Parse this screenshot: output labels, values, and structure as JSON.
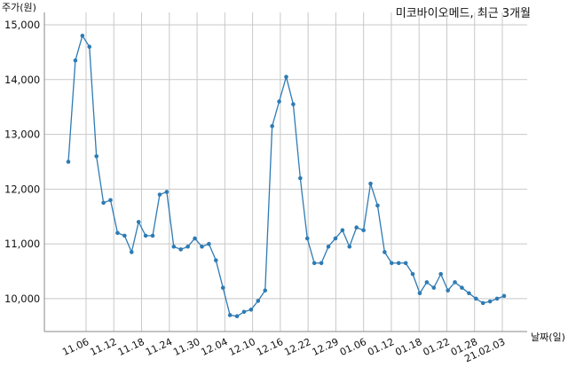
{
  "chart_data": {
    "type": "line",
    "title": "미코바이오메드, 최근 3개월",
    "ylabel": "주가(원)",
    "xlabel": "날짜(일)",
    "ylim": [
      9400,
      15000
    ],
    "yticks": [
      10000,
      11000,
      12000,
      13000,
      14000,
      15000
    ],
    "ytick_labels": [
      "10,000",
      "11,000",
      "12,000",
      "13,000",
      "14,000",
      "15,000"
    ],
    "xtick_labels": [
      "11.06",
      "11.12",
      "11.18",
      "11.24",
      "11.30",
      "12.04",
      "12.10",
      "12.16",
      "12.22",
      "12.29",
      "01.06",
      "01.12",
      "01.18",
      "01.22",
      "01.28",
      "21.02.03"
    ],
    "grid": true,
    "color": "#2e7bb4",
    "series": [
      {
        "x": [
          "11.04",
          "11.05",
          "11.06",
          "11.09",
          "11.10",
          "11.11",
          "11.12",
          "11.13",
          "11.16",
          "11.17",
          "11.18",
          "11.19",
          "11.20",
          "11.23",
          "11.24",
          "11.25",
          "11.26",
          "11.27",
          "11.30",
          "12.01",
          "12.02",
          "12.03",
          "12.04",
          "12.07",
          "12.08",
          "12.09",
          "12.10",
          "12.11",
          "12.14",
          "12.15",
          "12.16",
          "12.17",
          "12.18",
          "12.21",
          "12.22",
          "12.23",
          "12.24",
          "12.28",
          "12.29",
          "12.30",
          "01.04",
          "01.05",
          "01.06",
          "01.07",
          "01.08",
          "01.11",
          "01.12",
          "01.13",
          "01.14",
          "01.15",
          "01.18",
          "01.19",
          "01.20",
          "01.21",
          "01.22",
          "01.25",
          "01.26",
          "01.27",
          "01.28",
          "01.29",
          "02.01",
          "02.02",
          "02.03"
        ],
        "values": [
          12500,
          14350,
          14800,
          14600,
          12600,
          11750,
          11800,
          11200,
          11150,
          10850,
          11400,
          11150,
          11150,
          11900,
          11950,
          10950,
          10900,
          10950,
          11100,
          10950,
          11000,
          10700,
          10200,
          9700,
          9680,
          9760,
          9800,
          9960,
          10150,
          13150,
          13600,
          14050,
          13550,
          12200,
          11100,
          10650,
          10650,
          10950,
          11100,
          11250,
          10950,
          11300,
          11250,
          12100,
          11700,
          10850,
          10650,
          10650,
          10650,
          10450,
          10100,
          10300,
          10200,
          10450,
          10150,
          10300,
          10200,
          10100,
          10000,
          9920,
          9950,
          10000,
          10050
        ]
      }
    ]
  }
}
